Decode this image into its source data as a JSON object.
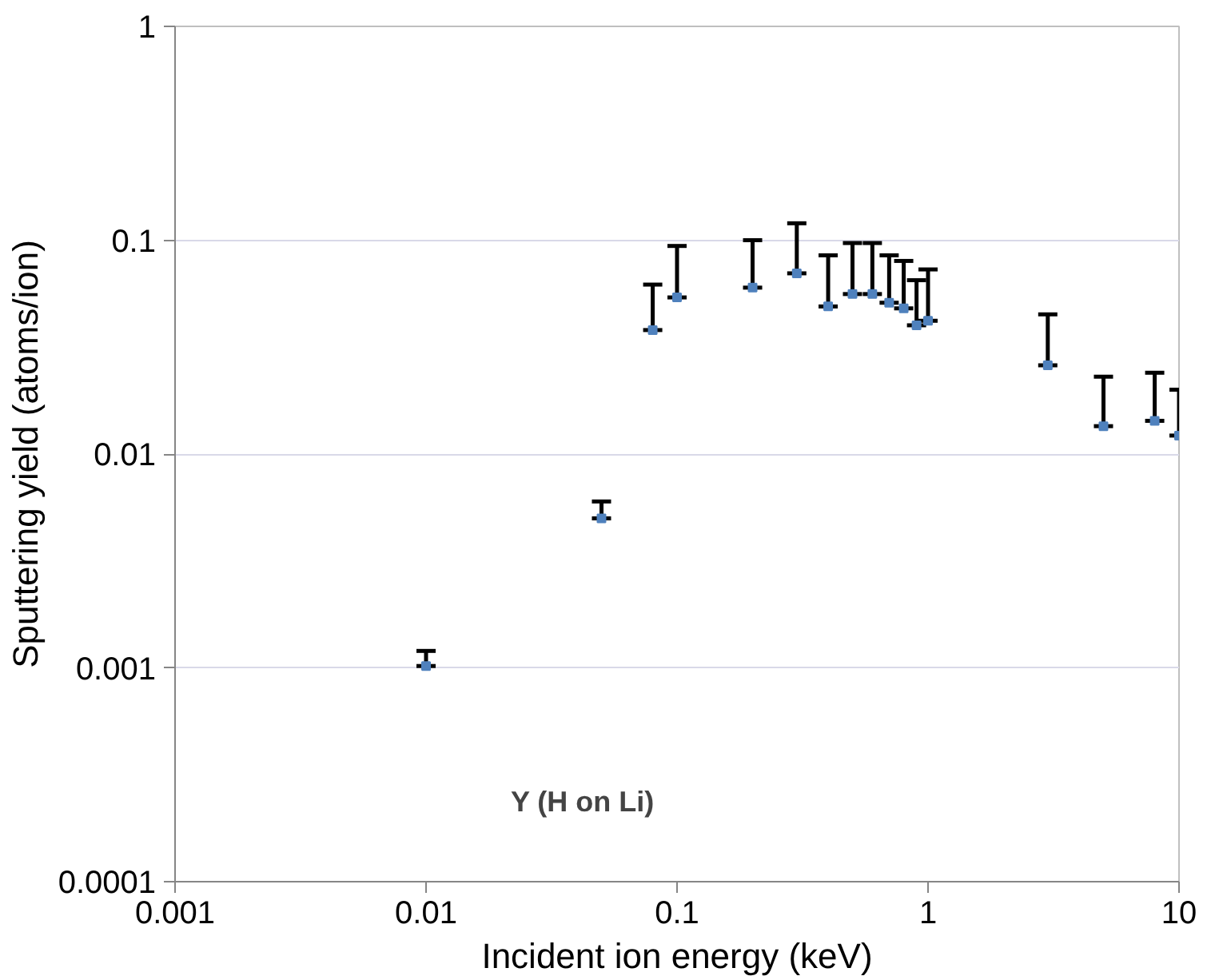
{
  "chart_data": {
    "type": "scatter",
    "xlabel": "Incident ion energy (keV)",
    "ylabel": "Sputtering yield (atoms/ion)",
    "annotations": [
      "Y (H on Li)"
    ],
    "x": [
      0.01,
      0.05,
      0.08,
      0.1,
      0.2,
      0.3,
      0.4,
      0.5,
      0.6,
      0.7,
      0.8,
      0.9,
      1,
      3,
      5,
      8,
      10
    ],
    "series": [
      {
        "color": "#4f81bd",
        "values": [
          0.00102,
          0.005,
          0.038,
          0.054,
          0.06,
          0.07,
          0.049,
          0.056,
          0.056,
          0.051,
          0.048,
          0.04,
          0.042,
          0.026,
          0.0135,
          0.0143,
          0.0122
        ],
        "errors": [
          [
            0.00102,
            0.0012
          ],
          [
            0.005,
            0.006
          ],
          [
            0.038,
            0.062
          ],
          [
            0.054,
            0.094
          ],
          [
            0.06,
            0.1
          ],
          [
            0.07,
            0.12
          ],
          [
            0.049,
            0.085
          ],
          [
            0.056,
            0.097
          ],
          [
            0.056,
            0.097
          ],
          [
            0.051,
            0.085
          ],
          [
            0.048,
            0.08
          ],
          [
            0.04,
            0.065
          ],
          [
            0.042,
            0.073
          ],
          [
            0.026,
            0.045
          ],
          [
            0.0135,
            0.023
          ],
          [
            0.0143,
            0.024
          ],
          [
            0.0122,
            0.02
          ]
        ]
      }
    ],
    "xlim": [
      0.001,
      10
    ],
    "ylim": [
      0.0001,
      1
    ],
    "xticks": [
      0.001,
      0.01,
      0.1,
      1,
      10
    ],
    "yticks": [
      0.0001,
      0.001,
      0.01,
      0.1,
      1
    ],
    "log": "xy",
    "grid": "y",
    "marker": "square"
  }
}
